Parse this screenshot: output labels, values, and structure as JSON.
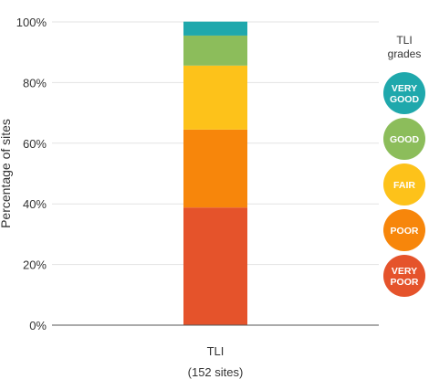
{
  "chart_data": {
    "type": "bar",
    "stacked": true,
    "ylabel": "Percentage of sites",
    "ylim": [
      0,
      100
    ],
    "y_ticks": [
      "0%",
      "20%",
      "40%",
      "60%",
      "80%",
      "100%"
    ],
    "grid": true,
    "categories": [
      "TLI"
    ],
    "category_sublabels": [
      "(152 sites)"
    ],
    "series": [
      {
        "name": "VERY POOR",
        "color": "#e5532b",
        "values": [
          38.8
        ]
      },
      {
        "name": "POOR",
        "color": "#f7860b",
        "values": [
          25.7
        ]
      },
      {
        "name": "FAIR",
        "color": "#fdc21a",
        "values": [
          21.1
        ]
      },
      {
        "name": "GOOD",
        "color": "#8cbd5b",
        "values": [
          9.9
        ]
      },
      {
        "name": "VERY GOOD",
        "color": "#1fa8ac",
        "values": [
          4.6
        ]
      }
    ],
    "legend": {
      "title_line1": "TLI",
      "title_line2": "grades",
      "placement": "right"
    }
  }
}
